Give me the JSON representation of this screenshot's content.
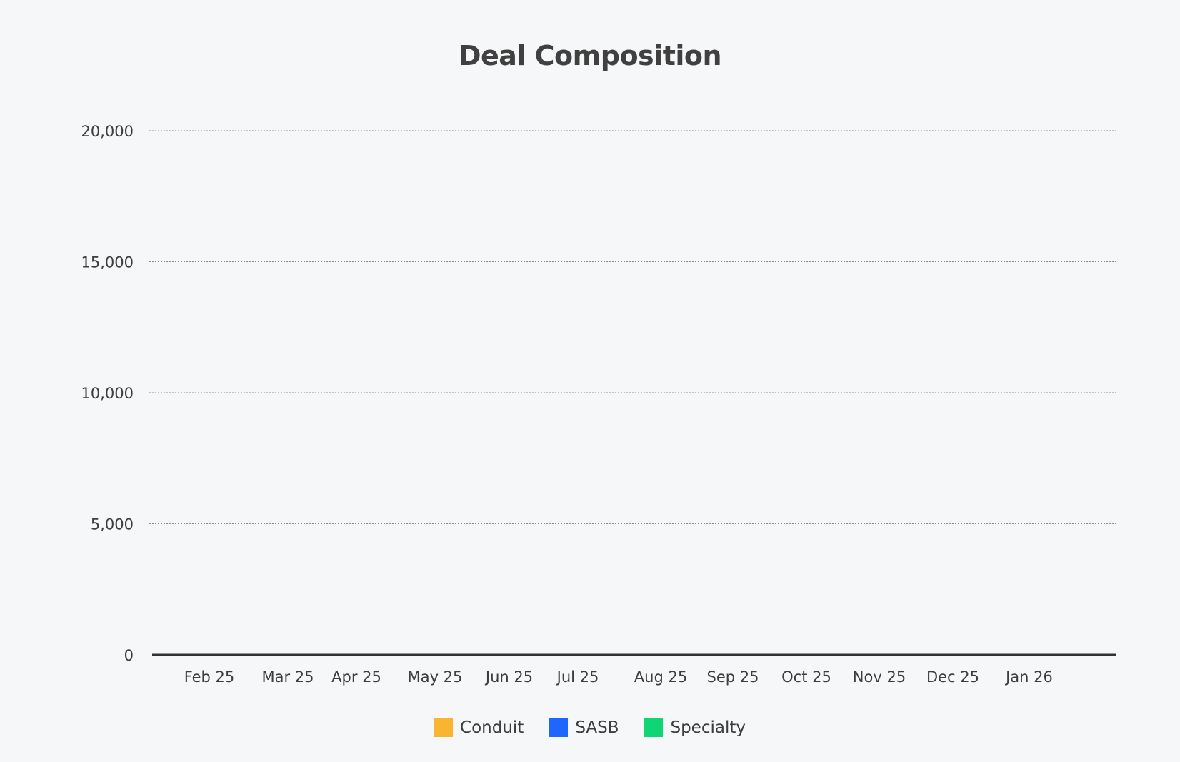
{
  "chart_data": {
    "type": "bar",
    "title": "Deal Composition",
    "xlabel": "",
    "ylabel": "",
    "categories": [
      "Feb 25",
      "Mar 25",
      "Apr 25",
      "May 25",
      "Jun 25",
      "Jul 25",
      "Aug 25",
      "Sep 25",
      "Oct 25",
      "Nov 25",
      "Dec 25",
      "Jan 26"
    ],
    "series": [
      {
        "name": "Conduit",
        "color": "#f9b531",
        "values": [
          0,
          0,
          0,
          0,
          0,
          0,
          0,
          0,
          0,
          0,
          0,
          0
        ]
      },
      {
        "name": "SASB",
        "color": "#1f66ff",
        "values": [
          0,
          0,
          0,
          0,
          0,
          0,
          0,
          0,
          0,
          0,
          0,
          0
        ]
      },
      {
        "name": "Specialty",
        "color": "#0fd672",
        "values": [
          0,
          0,
          0,
          0,
          0,
          0,
          0,
          0,
          0,
          0,
          0,
          0
        ]
      }
    ],
    "ylim": [
      0,
      20000
    ],
    "yticks": [
      0,
      5000,
      10000,
      15000,
      20000
    ],
    "ytick_labels": [
      "0",
      "5,000",
      "10,000",
      "15,000",
      "20,000"
    ],
    "grid": true,
    "legend_position": "bottom-center"
  }
}
